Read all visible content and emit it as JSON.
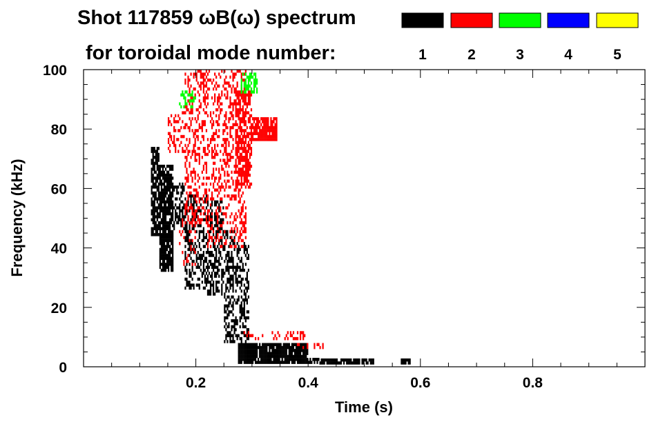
{
  "chart_data": {
    "type": "heatmap",
    "title_line1_prefix": "Shot 117859 ",
    "title_omega": "ω",
    "title_B": "B(",
    "title_omega2": "ω",
    "title_line1_suffix": ") spectrum",
    "title_line2": "for toroidal mode number:",
    "xlabel": "Time (s)",
    "ylabel": "Frequency (kHz)",
    "xlim": [
      0.0,
      1.0
    ],
    "ylim": [
      0,
      100
    ],
    "x_ticks": [
      {
        "value": 0.2,
        "label": "0.2"
      },
      {
        "value": 0.4,
        "label": "0.4"
      },
      {
        "value": 0.6,
        "label": "0.6"
      },
      {
        "value": 0.8,
        "label": "0.8"
      }
    ],
    "y_ticks": [
      {
        "value": 0,
        "label": "0"
      },
      {
        "value": 20,
        "label": "20"
      },
      {
        "value": 40,
        "label": "40"
      },
      {
        "value": 60,
        "label": "60"
      },
      {
        "value": 80,
        "label": "80"
      },
      {
        "value": 100,
        "label": "100"
      }
    ],
    "legend": [
      {
        "mode": "1",
        "color": "#000000"
      },
      {
        "mode": "2",
        "color": "#ff0000"
      },
      {
        "mode": "3",
        "color": "#00ff00"
      },
      {
        "mode": "4",
        "color": "#0000ff"
      },
      {
        "mode": "5",
        "color": "#ffff00"
      }
    ],
    "regions": [
      {
        "mode": "1",
        "t": [
          0.12,
          0.135
        ],
        "f": [
          44,
          74
        ],
        "density": 0.8
      },
      {
        "mode": "1",
        "t": [
          0.135,
          0.16
        ],
        "f": [
          32,
          68
        ],
        "density": 0.85
      },
      {
        "mode": "1",
        "t": [
          0.16,
          0.18
        ],
        "f": [
          46,
          62
        ],
        "density": 0.5
      },
      {
        "mode": "1",
        "t": [
          0.18,
          0.22
        ],
        "f": [
          26,
          58
        ],
        "density": 0.45
      },
      {
        "mode": "1",
        "t": [
          0.22,
          0.25
        ],
        "f": [
          24,
          56
        ],
        "density": 0.5
      },
      {
        "mode": "1",
        "t": [
          0.25,
          0.27
        ],
        "f": [
          8,
          46
        ],
        "density": 0.5
      },
      {
        "mode": "1",
        "t": [
          0.27,
          0.295
        ],
        "f": [
          8,
          42
        ],
        "density": 0.4
      },
      {
        "mode": "1",
        "t": [
          0.275,
          0.4
        ],
        "f": [
          1,
          8
        ],
        "density": 0.9
      },
      {
        "mode": "1",
        "t": [
          0.4,
          0.42
        ],
        "f": [
          1,
          3
        ],
        "density": 0.8
      },
      {
        "mode": "1",
        "t": [
          0.42,
          0.515
        ],
        "f": [
          0.8,
          2.2
        ],
        "density": 0.9
      },
      {
        "mode": "1",
        "t": [
          0.565,
          0.58
        ],
        "f": [
          0.8,
          2
        ],
        "density": 0.9
      },
      {
        "mode": "2",
        "t": [
          0.15,
          0.18
        ],
        "f": [
          72,
          86
        ],
        "density": 0.3
      },
      {
        "mode": "2",
        "t": [
          0.18,
          0.22
        ],
        "f": [
          48,
          100
        ],
        "density": 0.35
      },
      {
        "mode": "2",
        "t": [
          0.22,
          0.29
        ],
        "f": [
          40,
          100
        ],
        "density": 0.3
      },
      {
        "mode": "2",
        "t": [
          0.27,
          0.3
        ],
        "f": [
          60,
          94
        ],
        "density": 0.6
      },
      {
        "mode": "2",
        "t": [
          0.3,
          0.345
        ],
        "f": [
          76,
          84
        ],
        "density": 0.8
      },
      {
        "mode": "2",
        "t": [
          0.17,
          0.2
        ],
        "f": [
          34,
          54
        ],
        "density": 0.2
      },
      {
        "mode": "2",
        "t": [
          0.285,
          0.395
        ],
        "f": [
          9,
          12
        ],
        "density": 0.3
      },
      {
        "mode": "2",
        "t": [
          0.38,
          0.43
        ],
        "f": [
          6,
          8
        ],
        "density": 0.2
      },
      {
        "mode": "3",
        "t": [
          0.17,
          0.2
        ],
        "f": [
          87,
          93
        ],
        "density": 0.35
      },
      {
        "mode": "3",
        "t": [
          0.28,
          0.31
        ],
        "f": [
          92,
          99
        ],
        "density": 0.6
      }
    ]
  }
}
